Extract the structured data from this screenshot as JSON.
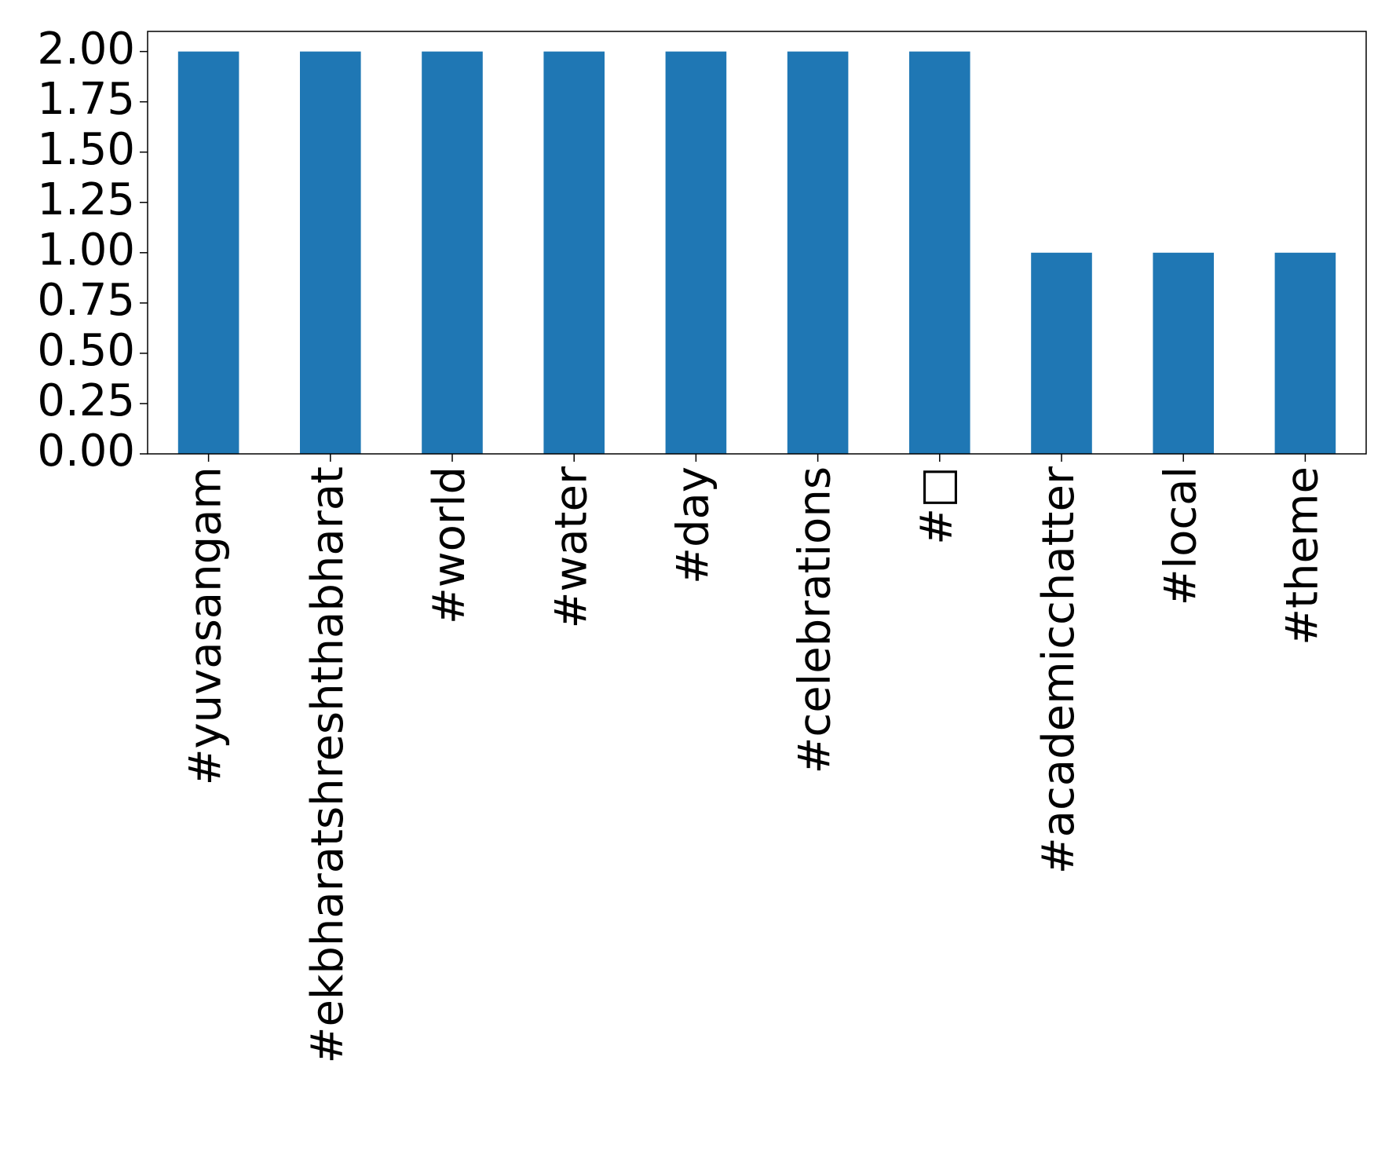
{
  "chart_data": {
    "type": "bar",
    "categories": [
      "#yuvasangam",
      "#ekbharatshreshthabharat",
      "#world",
      "#water",
      "#day",
      "#celebrations",
      "#□",
      "#academicchatter",
      "#local",
      "#theme"
    ],
    "values": [
      2,
      2,
      2,
      2,
      2,
      2,
      2,
      1,
      1,
      1
    ],
    "color": "#1f77b4",
    "ylim": [
      0,
      2.1
    ],
    "yticks": [
      {
        "value": 0,
        "label": "0.00"
      },
      {
        "value": 0.25,
        "label": "0.25"
      },
      {
        "value": 0.5,
        "label": "0.50"
      },
      {
        "value": 0.75,
        "label": "0.75"
      },
      {
        "value": 1,
        "label": "1.00"
      },
      {
        "value": 1.25,
        "label": "1.25"
      },
      {
        "value": 1.5,
        "label": "1.50"
      },
      {
        "value": 1.75,
        "label": "1.75"
      },
      {
        "value": 2,
        "label": "2.00"
      }
    ],
    "grid": false
  }
}
